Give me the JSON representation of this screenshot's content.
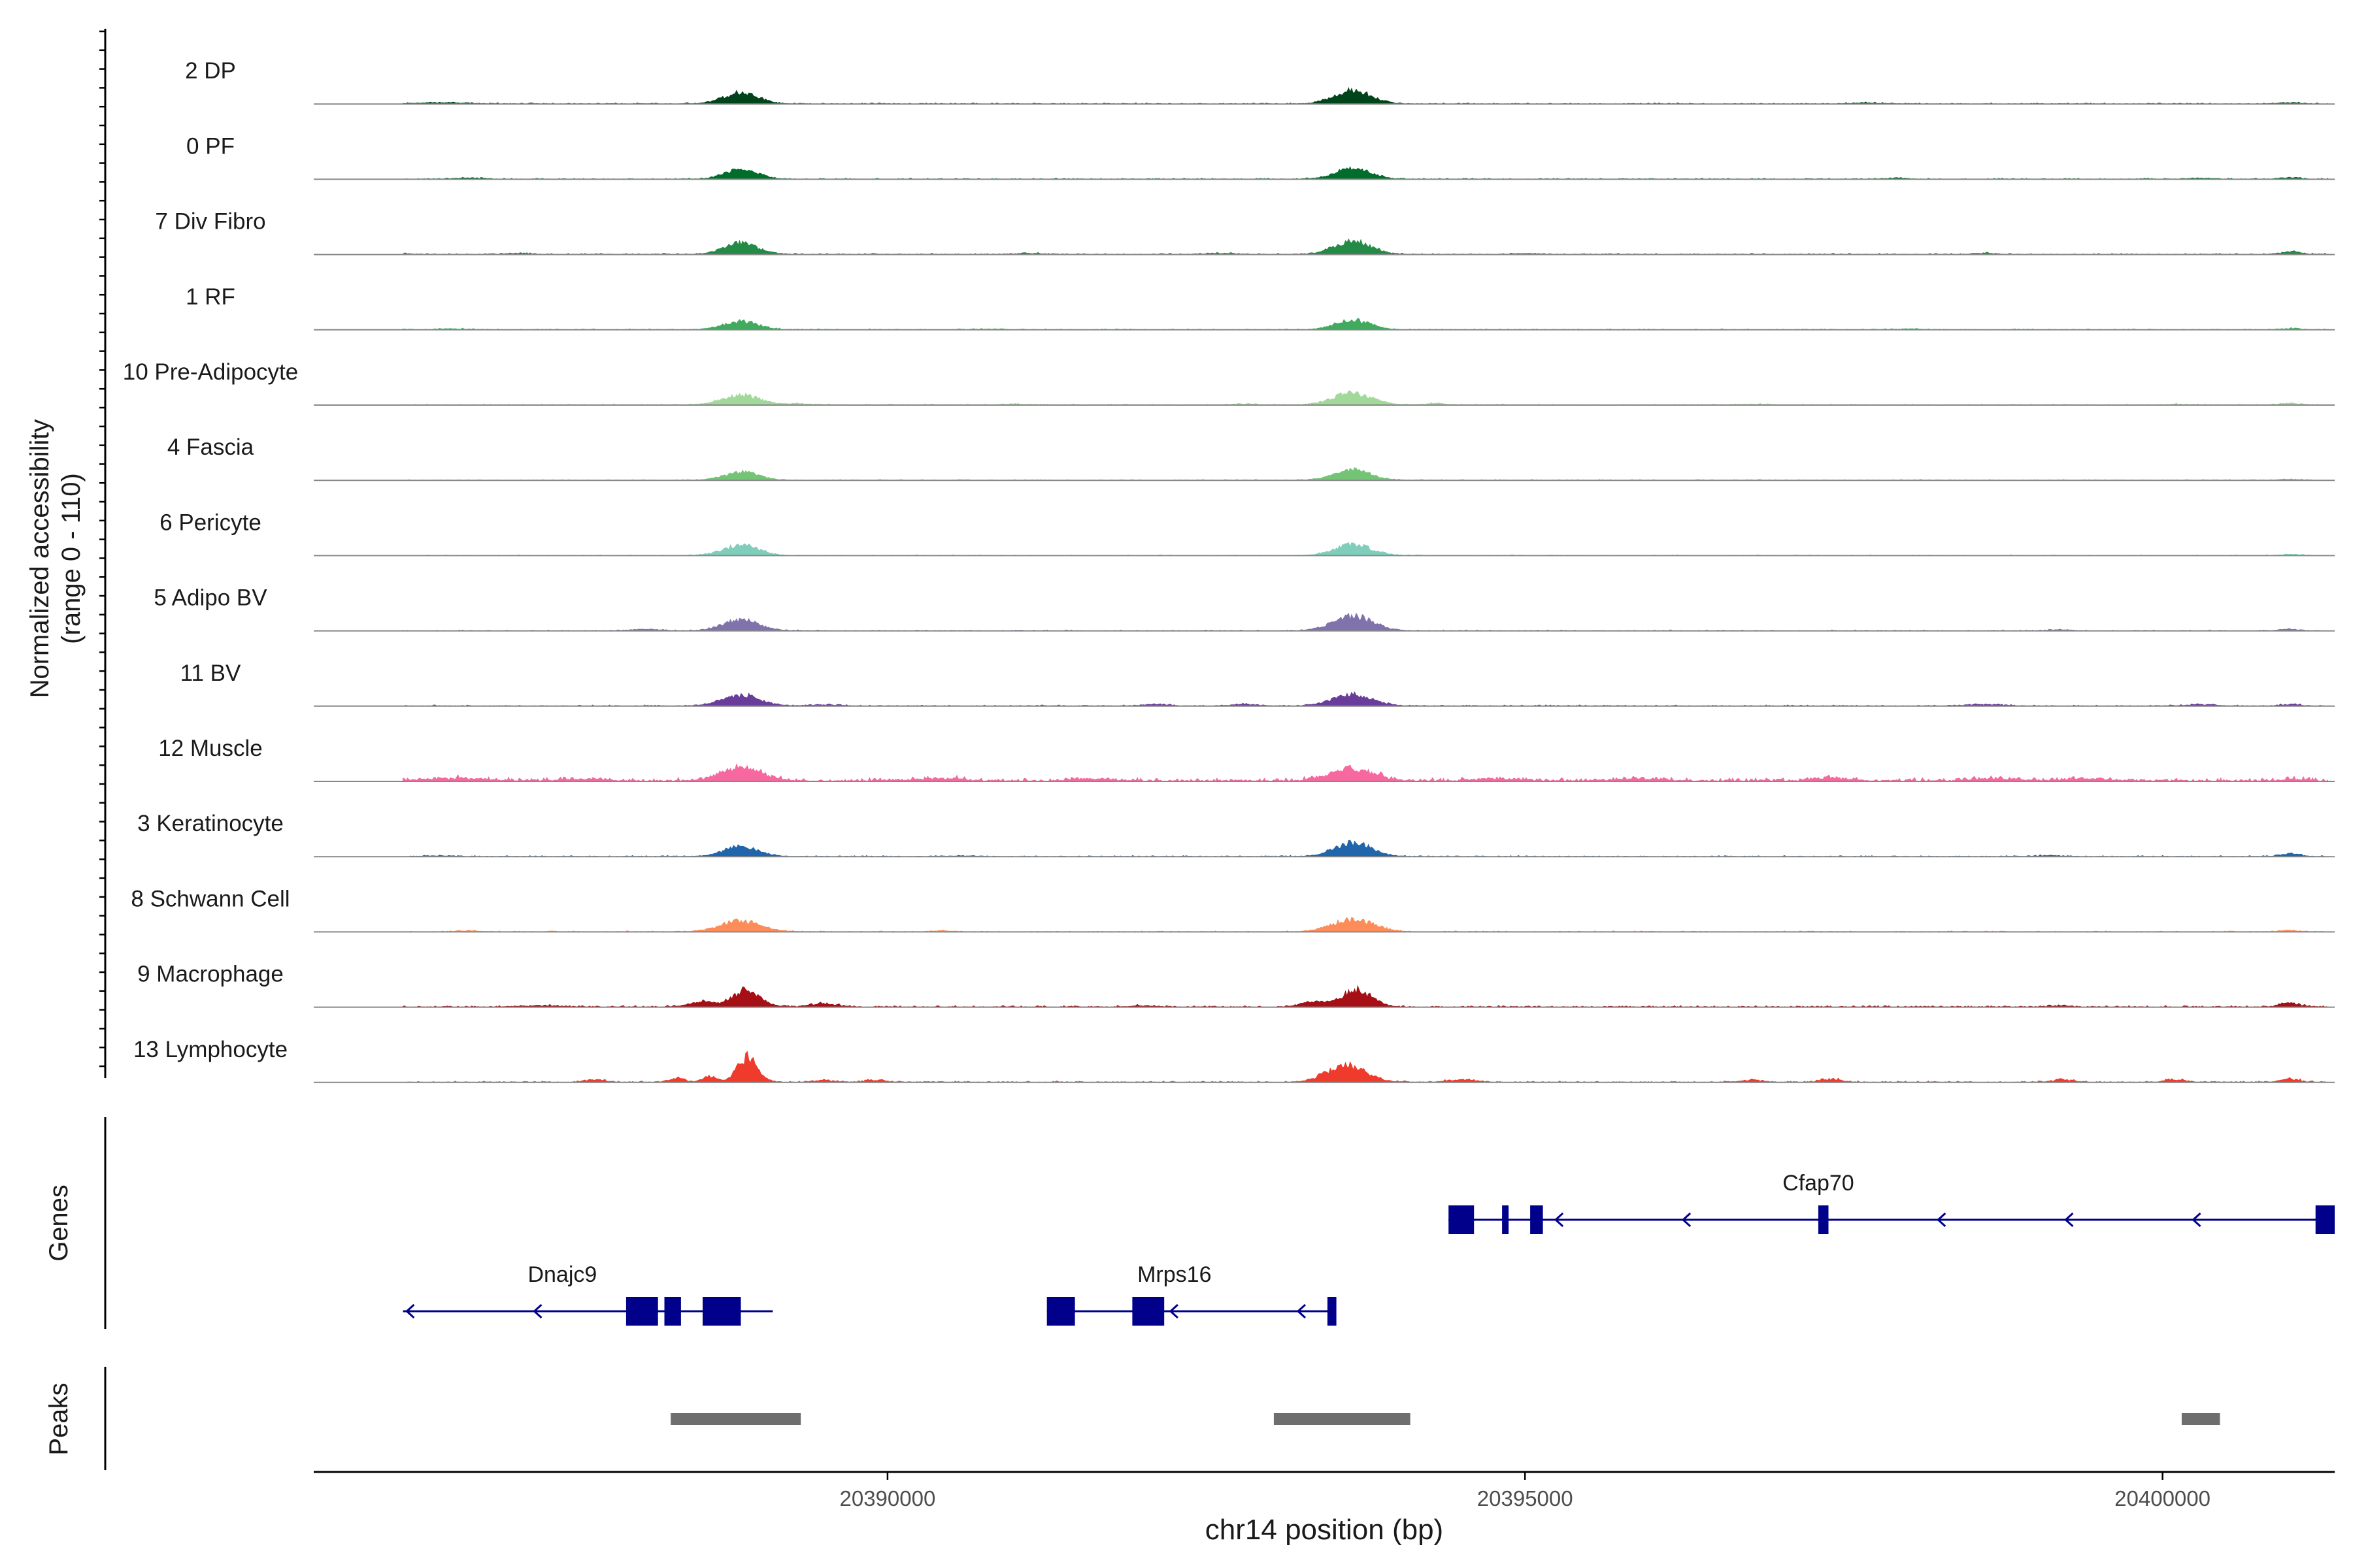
{
  "chart_data": {
    "type": "area",
    "title": "",
    "ylabel_line1": "Normalized accessibility",
    "ylabel_line2": "(range 0 - 110)",
    "yrange": [
      0,
      110
    ],
    "xlabel": "chr14 position (bp)",
    "xlim": [
      20385500,
      20401350
    ],
    "xticks": [
      20390000,
      20395000,
      20400000
    ],
    "xtick_labels": [
      "20390000",
      "20395000",
      "20400000"
    ],
    "coverage_span": [
      20386200,
      20401300
    ],
    "tracks": [
      {
        "name": "2 DP",
        "color": "#00441b",
        "peaks": [
          [
            20388850,
            20,
            190
          ],
          [
            20393650,
            24,
            200
          ]
        ],
        "noise": 1.5,
        "events": [
          [
            20386500,
            2,
            260
          ],
          [
            20397700,
            1.5,
            200
          ],
          [
            20401000,
            2,
            120
          ]
        ]
      },
      {
        "name": "0 PF",
        "color": "#006d2c",
        "peaks": [
          [
            20388850,
            17,
            185
          ],
          [
            20393650,
            19,
            195
          ]
        ],
        "noise": 1.5,
        "events": [
          [
            20386700,
            2,
            150
          ],
          [
            20397900,
            1.5,
            150
          ],
          [
            20400300,
            1.5,
            150
          ],
          [
            20401000,
            2.5,
            110
          ]
        ]
      },
      {
        "name": "7 Div Fibro",
        "color": "#238b45",
        "peaks": [
          [
            20388850,
            20,
            190
          ],
          [
            20393650,
            24,
            200
          ]
        ],
        "noise": 1.7,
        "events": [
          [
            20386200,
            1.5,
            120
          ],
          [
            20387100,
            2,
            150
          ],
          [
            20391100,
            2,
            120
          ],
          [
            20392600,
            2,
            150
          ],
          [
            20395000,
            1.5,
            150
          ],
          [
            20398600,
            2,
            120
          ],
          [
            20401000,
            4.5,
            110
          ]
        ]
      },
      {
        "name": "1 RF",
        "color": "#41ab5d",
        "peaks": [
          [
            20388850,
            15,
            190
          ],
          [
            20393650,
            17,
            190
          ]
        ],
        "noise": 1.3,
        "events": [
          [
            20386600,
            1.5,
            150
          ],
          [
            20390800,
            1,
            150
          ],
          [
            20398000,
            1.2,
            150
          ],
          [
            20401000,
            2,
            110
          ]
        ]
      },
      {
        "name": "10 Pre-Adipocyte",
        "color": "#a1d99b",
        "peaks": [
          [
            20388850,
            18,
            200
          ],
          [
            20393650,
            22,
            210
          ]
        ],
        "noise": 1.4,
        "events": [
          [
            20389300,
            2.5,
            150
          ],
          [
            20391000,
            1.5,
            150
          ],
          [
            20392800,
            1.5,
            150
          ],
          [
            20394300,
            3,
            110
          ],
          [
            20396800,
            1.5,
            120
          ],
          [
            20400100,
            1.2,
            120
          ],
          [
            20401000,
            3,
            110
          ]
        ]
      },
      {
        "name": "4 Fascia",
        "color": "#74c476",
        "peaks": [
          [
            20388850,
            15,
            190
          ],
          [
            20393650,
            18,
            200
          ]
        ],
        "noise": 1.2,
        "events": [
          [
            20401000,
            1.5,
            110
          ]
        ]
      },
      {
        "name": "6 Pericyte",
        "color": "#7fcdbb",
        "peaks": [
          [
            20388850,
            19,
            190
          ],
          [
            20393650,
            20,
            200
          ]
        ],
        "noise": 1.1,
        "events": [
          [
            20401000,
            2,
            110
          ]
        ]
      },
      {
        "name": "5 Adipo BV",
        "color": "#8073ac",
        "peaks": [
          [
            20388850,
            19,
            200
          ],
          [
            20393650,
            26,
            220
          ]
        ],
        "noise": 1.3,
        "events": [
          [
            20388100,
            2.5,
            150
          ],
          [
            20399200,
            2,
            110
          ],
          [
            20401000,
            2.5,
            110
          ]
        ]
      },
      {
        "name": "11 BV",
        "color": "#6a3d9a",
        "peaks": [
          [
            20388850,
            19,
            210
          ],
          [
            20393650,
            20,
            220
          ]
        ],
        "noise": 1.6,
        "events": [
          [
            20389500,
            2,
            150
          ],
          [
            20392100,
            2.5,
            150
          ],
          [
            20392800,
            3,
            150
          ],
          [
            20398600,
            3,
            200
          ],
          [
            20400300,
            2.5,
            150
          ],
          [
            20401000,
            3,
            110
          ]
        ]
      },
      {
        "name": "12 Muscle",
        "color": "#f768a1",
        "peaks": [
          [
            20388850,
            24,
            220
          ],
          [
            20393650,
            22,
            230
          ]
        ],
        "noise": 5,
        "events": [
          [
            20386600,
            4,
            350
          ],
          [
            20387600,
            3.5,
            250
          ],
          [
            20390400,
            4,
            250
          ],
          [
            20391600,
            3.5,
            200
          ],
          [
            20394800,
            4,
            250
          ],
          [
            20395900,
            3.5,
            250
          ],
          [
            20397400,
            4,
            200
          ],
          [
            20398700,
            4,
            250
          ],
          [
            20399400,
            4,
            250
          ],
          [
            20401000,
            3,
            110
          ]
        ]
      },
      {
        "name": "3 Keratinocyte",
        "color": "#2166ac",
        "peaks": [
          [
            20388850,
            18,
            190
          ],
          [
            20393650,
            25,
            200
          ]
        ],
        "noise": 1.5,
        "events": [
          [
            20386500,
            1.5,
            150
          ],
          [
            20390600,
            1.5,
            120
          ],
          [
            20399100,
            1.5,
            150
          ],
          [
            20401000,
            4.5,
            110
          ]
        ]
      },
      {
        "name": "8 Schwann Cell",
        "color": "#fc8d59",
        "peaks": [
          [
            20388850,
            20,
            220
          ],
          [
            20393650,
            22,
            230
          ]
        ],
        "noise": 1.4,
        "events": [
          [
            20386700,
            1.5,
            120
          ],
          [
            20390400,
            1.5,
            120
          ],
          [
            20401000,
            2.5,
            110
          ]
        ]
      },
      {
        "name": "9 Macrophage",
        "color": "#a50f15",
        "peaks": [
          [
            20388900,
            31,
            150
          ],
          [
            20393680,
            31,
            160
          ],
          [
            20388550,
            9,
            150
          ],
          [
            20393350,
            9,
            150
          ]
        ],
        "noise": 2.2,
        "events": [
          [
            20389500,
            6,
            150
          ],
          [
            20387300,
            2,
            250
          ],
          [
            20392000,
            2,
            150
          ],
          [
            20399200,
            2,
            110
          ],
          [
            20401000,
            7,
            110
          ]
        ]
      },
      {
        "name": "13 Lymphocyte",
        "color": "#ef3b2c",
        "peaks": [
          [
            20388900,
            46,
            110
          ],
          [
            20393600,
            29,
            220
          ],
          [
            20388600,
            11,
            80
          ],
          [
            20388350,
            7,
            80
          ]
        ],
        "noise": 2,
        "events": [
          [
            20387700,
            5,
            110
          ],
          [
            20389500,
            3.5,
            110
          ],
          [
            20389900,
            4,
            110
          ],
          [
            20394500,
            4,
            160
          ],
          [
            20396800,
            4,
            110
          ],
          [
            20397400,
            5,
            110
          ],
          [
            20399200,
            5,
            110
          ],
          [
            20400100,
            5,
            110
          ],
          [
            20401000,
            5,
            110
          ]
        ]
      }
    ],
    "genes": {
      "label": "Genes",
      "color": "#00008b",
      "items": [
        {
          "name": "Cfap70",
          "strand": "-",
          "start": 20394400,
          "end": 20401350,
          "exons": [
            [
              20394400,
              20394600
            ],
            [
              20394820,
              20394860
            ],
            [
              20395040,
              20395140
            ],
            [
              20397300,
              20397380
            ],
            [
              20401200,
              20401350
            ]
          ],
          "arrows": [
            20395240,
            20396240,
            20398240,
            20399240,
            20400240
          ],
          "row": 0
        },
        {
          "name": "Dnajc9",
          "strand": "-",
          "start": 20386200,
          "end": 20389100,
          "exons": [
            [
              20387950,
              20388200
            ],
            [
              20388250,
              20388380
            ],
            [
              20388550,
              20388850
            ]
          ],
          "arrows": [
            20386230,
            20387230
          ],
          "row": 1
        },
        {
          "name": "Mrps16",
          "strand": "-",
          "start": 20391250,
          "end": 20393520,
          "exons": [
            [
              20391250,
              20391470
            ],
            [
              20391920,
              20392170
            ],
            [
              20393450,
              20393520
            ]
          ],
          "arrows": [
            20392220,
            20393220
          ],
          "row": 1
        }
      ]
    },
    "peaks": {
      "label": "Peaks",
      "color": "#6e6e6e",
      "items": [
        [
          20388300,
          20389320
        ],
        [
          20393030,
          20394100
        ],
        [
          20400150,
          20400450
        ]
      ]
    }
  }
}
